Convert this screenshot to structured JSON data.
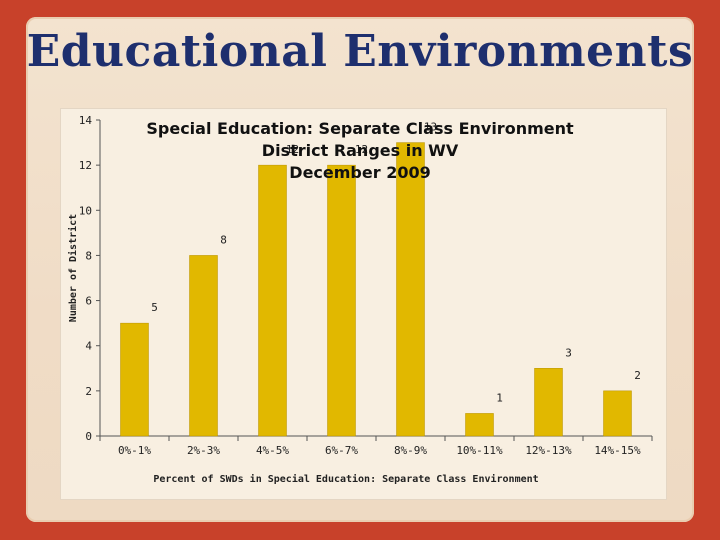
{
  "slide": {
    "title": "Educational Environments"
  },
  "colors": {
    "background": "#c8412a",
    "panel": "#f3e3cf",
    "title": "#1e2f6e",
    "bar": "#e1b800"
  },
  "chart_data": {
    "type": "bar",
    "title_lines": [
      "Special Education: Separate Class Environment",
      "District Ranges in WV",
      "December 2009"
    ],
    "xlabel": "Percent of SWDs in Special Education: Separate Class Environment",
    "ylabel": "Number of District",
    "categories": [
      "0%-1%",
      "2%-3%",
      "4%-5%",
      "6%-7%",
      "8%-9%",
      "10%-11%",
      "12%-13%",
      "14%-15%"
    ],
    "series": [
      {
        "values": [
          5,
          8,
          12,
          12,
          13,
          1,
          3,
          2
        ]
      }
    ],
    "ylim": [
      0,
      14
    ],
    "yticks": [
      0,
      2,
      4,
      6,
      8,
      10,
      12,
      14
    ],
    "grid": false,
    "legend": "none"
  }
}
